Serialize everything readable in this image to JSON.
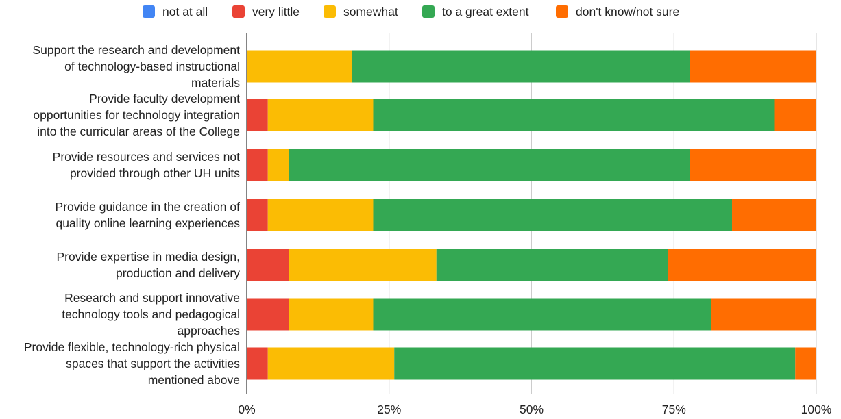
{
  "chart_data": {
    "type": "bar",
    "orientation": "horizontal",
    "stacked": "percent",
    "legend_position": "top",
    "grid": true,
    "xlim": [
      0,
      100
    ],
    "x_ticks": [
      "0%",
      "25%",
      "50%",
      "75%",
      "100%"
    ],
    "categories": [
      [
        "Support the research and development",
        "of technology-based instructional",
        "materials"
      ],
      [
        "Provide faculty development",
        "opportunities for technology integration",
        "into the curricular areas of the College"
      ],
      [
        "Provide resources and services not",
        "provided through other UH units"
      ],
      [
        "Provide guidance in the creation of",
        "quality online learning experiences"
      ],
      [
        "Provide expertise in media design,",
        "production and delivery"
      ],
      [
        "Research and support innovative",
        "technology tools and pedagogical",
        "approaches"
      ],
      [
        "Provide flexible, technology-rich physical",
        "spaces that support the activities",
        "mentioned above"
      ]
    ],
    "series": [
      {
        "name": "not at all",
        "color": "#4285f4",
        "values": [
          0,
          0,
          0,
          0,
          0,
          0,
          0
        ]
      },
      {
        "name": "very little",
        "color": "#ea4335",
        "values": [
          0,
          3.7,
          3.7,
          3.7,
          7.4,
          7.4,
          3.7
        ]
      },
      {
        "name": "somewhat",
        "color": "#fbbc04",
        "values": [
          18.5,
          18.5,
          3.7,
          18.5,
          25.9,
          14.8,
          22.2
        ]
      },
      {
        "name": "to a great extent",
        "color": "#34a853",
        "values": [
          59.3,
          70.4,
          70.4,
          63.0,
          40.7,
          59.3,
          70.4
        ]
      },
      {
        "name": "don't know/not sure",
        "color": "#ff6d01",
        "values": [
          22.2,
          7.4,
          22.2,
          14.8,
          25.9,
          18.5,
          3.7
        ]
      }
    ]
  }
}
